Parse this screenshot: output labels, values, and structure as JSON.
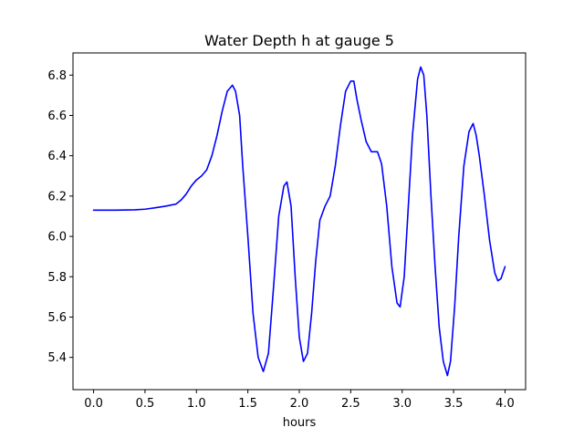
{
  "chart_data": {
    "type": "line",
    "title": "Water Depth h at gauge 5",
    "xlabel": "hours",
    "ylabel": "",
    "xlim": [
      -0.2,
      4.2
    ],
    "ylim": [
      5.24,
      6.91
    ],
    "xticks": [
      0.0,
      0.5,
      1.0,
      1.5,
      2.0,
      2.5,
      3.0,
      3.5,
      4.0
    ],
    "xtick_labels": [
      "0.0",
      "0.5",
      "1.0",
      "1.5",
      "2.0",
      "2.5",
      "3.0",
      "3.5",
      "4.0"
    ],
    "yticks": [
      5.4,
      5.6,
      5.8,
      6.0,
      6.2,
      6.4,
      6.6,
      6.8
    ],
    "ytick_labels": [
      "5.4",
      "5.6",
      "5.8",
      "6.0",
      "6.2",
      "6.4",
      "6.6",
      "6.8"
    ],
    "grid": false,
    "series": [
      {
        "color": "#0000ff",
        "x": [
          0.0,
          0.2,
          0.4,
          0.5,
          0.6,
          0.7,
          0.8,
          0.85,
          0.9,
          0.95,
          1.0,
          1.05,
          1.1,
          1.15,
          1.2,
          1.25,
          1.3,
          1.35,
          1.38,
          1.42,
          1.45,
          1.5,
          1.55,
          1.6,
          1.65,
          1.7,
          1.75,
          1.8,
          1.85,
          1.88,
          1.92,
          1.96,
          2.0,
          2.04,
          2.08,
          2.12,
          2.16,
          2.2,
          2.25,
          2.3,
          2.35,
          2.4,
          2.45,
          2.5,
          2.53,
          2.56,
          2.6,
          2.65,
          2.7,
          2.73,
          2.76,
          2.8,
          2.85,
          2.9,
          2.95,
          2.98,
          3.02,
          3.06,
          3.1,
          3.15,
          3.18,
          3.21,
          3.24,
          3.28,
          3.32,
          3.36,
          3.4,
          3.44,
          3.47,
          3.51,
          3.55,
          3.6,
          3.65,
          3.69,
          3.72,
          3.75,
          3.8,
          3.85,
          3.9,
          3.93,
          3.96,
          4.0
        ],
        "y": [
          6.13,
          6.13,
          6.132,
          6.135,
          6.142,
          6.15,
          6.16,
          6.18,
          6.21,
          6.25,
          6.28,
          6.3,
          6.33,
          6.4,
          6.5,
          6.62,
          6.72,
          6.75,
          6.72,
          6.6,
          6.35,
          6.0,
          5.62,
          5.4,
          5.33,
          5.42,
          5.75,
          6.1,
          6.25,
          6.27,
          6.15,
          5.8,
          5.5,
          5.38,
          5.42,
          5.62,
          5.88,
          6.08,
          6.15,
          6.2,
          6.35,
          6.55,
          6.72,
          6.77,
          6.77,
          6.68,
          6.58,
          6.47,
          6.42,
          6.42,
          6.42,
          6.36,
          6.15,
          5.85,
          5.67,
          5.65,
          5.8,
          6.15,
          6.5,
          6.78,
          6.84,
          6.8,
          6.6,
          6.2,
          5.85,
          5.55,
          5.38,
          5.31,
          5.38,
          5.65,
          6.0,
          6.35,
          6.52,
          6.56,
          6.5,
          6.4,
          6.2,
          5.98,
          5.82,
          5.78,
          5.79,
          5.85
        ]
      }
    ]
  }
}
